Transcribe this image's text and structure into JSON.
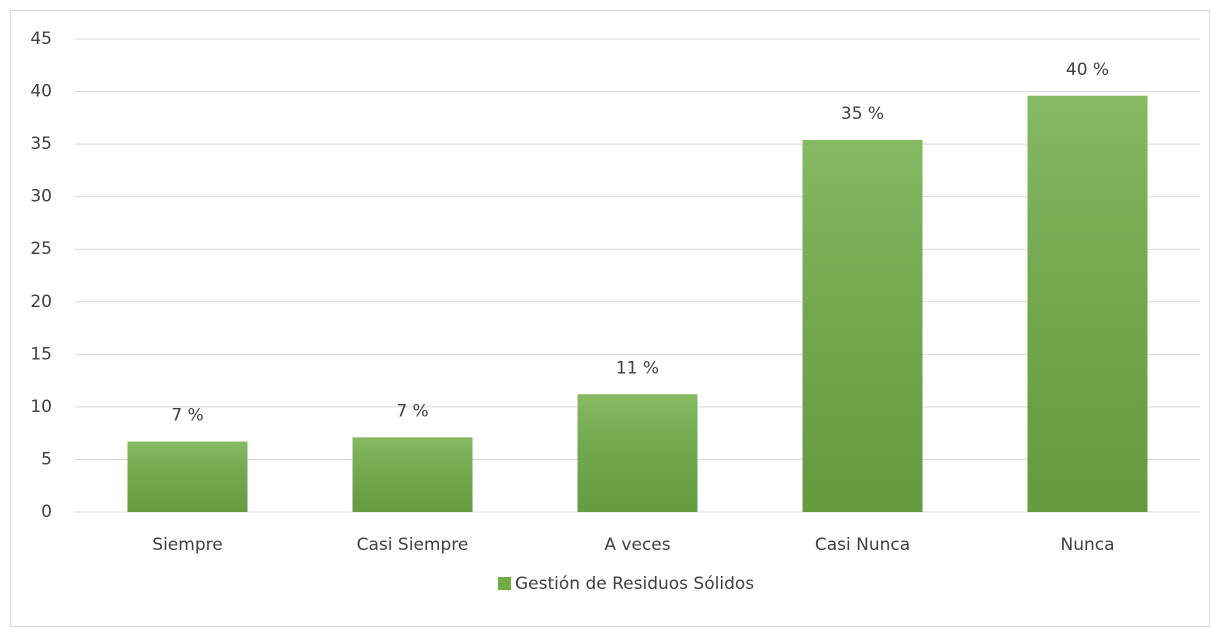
{
  "chart_data": {
    "type": "bar",
    "categories": [
      "Siempre",
      "Casi Siempre",
      "A veces",
      "Casi Nunca",
      "Nunca"
    ],
    "series": [
      {
        "name": "Gestión de Residuos Sólidos",
        "color": "#70ad47",
        "values": [
          6.7,
          7.1,
          11.2,
          35.4,
          39.6
        ],
        "value_labels": [
          "7 %",
          "7 %",
          "11 %",
          "35 %",
          "40 %"
        ]
      }
    ],
    "ylim": [
      0,
      45
    ],
    "yticks": [
      0,
      5,
      10,
      15,
      20,
      25,
      30,
      35,
      40,
      45
    ],
    "grid": true,
    "legend": "bottom"
  }
}
